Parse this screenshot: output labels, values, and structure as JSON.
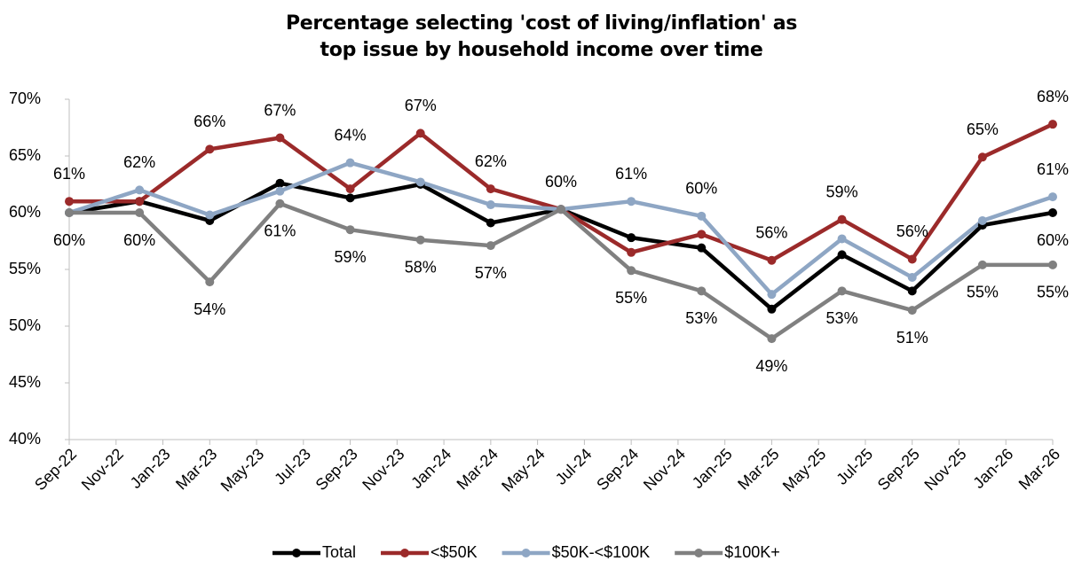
{
  "chart_data": {
    "type": "line",
    "title": "Percentage selecting 'cost of living/inflation' as top issue by household income over time",
    "categories": [
      "Sep-22",
      "Nov-22",
      "Jan-23",
      "Mar-23",
      "May-23",
      "Jul-23",
      "Sep-23",
      "Nov-23",
      "Jan-24",
      "Mar-24",
      "May-24",
      "Jul-24",
      "Sep-24",
      "Nov-24",
      "Jan-25",
      "Mar-25",
      "May-25",
      "Jul-25",
      "Sep-25",
      "Nov-25",
      "Jan-26",
      "Mar-26"
    ],
    "x": [
      "Sep-22",
      "Dec-22",
      "Mar-23",
      "Jun-23",
      "Sep-23",
      "Dec-23",
      "Mar-24",
      "Jun-24",
      "Sep-24",
      "Dec-24",
      "Mar-25",
      "Jun-25",
      "Sep-25",
      "Dec-25",
      "Mar-26"
    ],
    "ylim": [
      40,
      70
    ],
    "yticks": [
      {
        "value": 40,
        "label": "40%"
      },
      {
        "value": 45,
        "label": "45%"
      },
      {
        "value": 50,
        "label": "50%"
      },
      {
        "value": 55,
        "label": "55%"
      },
      {
        "value": 60,
        "label": "60%"
      },
      {
        "value": 65,
        "label": "65%"
      },
      {
        "value": 70,
        "label": "70%"
      }
    ],
    "grid": false,
    "legend": "bottom",
    "series": [
      {
        "name": "Total",
        "color": "#000000",
        "values": [
          60,
          61,
          59.3,
          62.6,
          61.3,
          62.5,
          59.1,
          60.3,
          57.8,
          56.9,
          51.5,
          56.3,
          53.1,
          58.9,
          60
        ],
        "value_labels": [
          null,
          null,
          null,
          null,
          null,
          null,
          null,
          null,
          null,
          null,
          null,
          null,
          null,
          null,
          "60%"
        ]
      },
      {
        "name": "<$50K",
        "color": "#9b2a2a",
        "values": [
          61,
          61,
          65.6,
          66.6,
          62.1,
          67,
          62.1,
          60.3,
          56.5,
          58.1,
          55.8,
          59.4,
          55.9,
          64.9,
          67.8
        ],
        "value_labels": [
          "61%",
          null,
          "66%",
          "67%",
          null,
          "67%",
          "62%",
          "60%",
          null,
          null,
          "56%",
          "59%",
          "56%",
          "65%",
          "68%"
        ]
      },
      {
        "name": "$50K-<$100K",
        "color": "#8ea6c4",
        "values": [
          60,
          62,
          59.8,
          61.9,
          64.4,
          62.7,
          60.7,
          60.3,
          61,
          59.7,
          52.8,
          57.7,
          54.3,
          59.3,
          61.4
        ],
        "value_labels": [
          null,
          "62%",
          null,
          null,
          "64%",
          null,
          null,
          null,
          "61%",
          "60%",
          null,
          null,
          null,
          null,
          "61%"
        ]
      },
      {
        "name": "$100K+",
        "color": "#808080",
        "values": [
          60,
          60,
          53.9,
          60.8,
          58.5,
          57.6,
          57.1,
          60.3,
          54.9,
          53.1,
          48.9,
          53.1,
          51.4,
          55.4,
          55.4
        ],
        "value_labels": [
          "60%",
          "60%",
          "54%",
          "61%",
          "59%",
          "58%",
          "57%",
          null,
          "55%",
          "53%",
          "49%",
          "53%",
          "51%",
          "55%",
          "55%"
        ]
      }
    ]
  }
}
